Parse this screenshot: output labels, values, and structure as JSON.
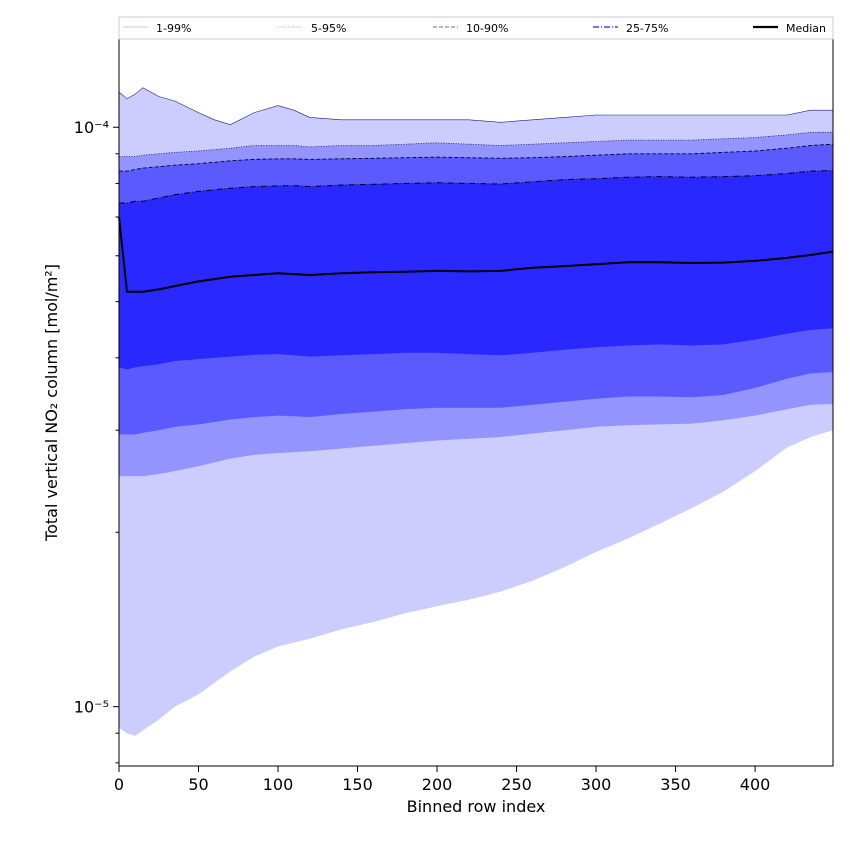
{
  "chart_data": {
    "type": "area",
    "xlabel": "Binned row index",
    "ylabel": "Total vertical NO₂ column [mol/m²]",
    "xlim": [
      0,
      449
    ],
    "ylim": [
      7.9e-06,
      0.000142
    ],
    "yscale": "log",
    "x_ticks": [
      0,
      50,
      100,
      150,
      200,
      250,
      300,
      350,
      400
    ],
    "y_major_ticks": [
      1e-05,
      0.0001
    ],
    "y_tick_labels": [
      "10⁻⁵",
      "10⁻⁴"
    ],
    "legend": {
      "position": "top",
      "entries": [
        {
          "label": "1-99%",
          "style": "solid-thin",
          "color": "#c8c8ff"
        },
        {
          "label": "5-95%",
          "style": "dotted",
          "color": "#a0a0ff"
        },
        {
          "label": "10-90%",
          "style": "dashed",
          "color": "#8080ff"
        },
        {
          "label": "25-75%",
          "style": "dashdot",
          "color": "#4040ff"
        },
        {
          "label": "Median",
          "style": "solid-thick",
          "color": "#000000"
        }
      ]
    },
    "colors": {
      "band_1_99": "#ccccff",
      "band_5_95": "#9494ff",
      "band_10_90": "#5a5aff",
      "band_25_75": "#2828ff",
      "median": "#000000"
    },
    "x": [
      0,
      5,
      10,
      15,
      25,
      35,
      50,
      60,
      70,
      85,
      100,
      110,
      120,
      140,
      160,
      180,
      200,
      220,
      240,
      260,
      280,
      300,
      320,
      340,
      360,
      380,
      400,
      420,
      435,
      449
    ],
    "series": [
      {
        "name": "1-99%",
        "upper": [
          0.000115,
          0.000112,
          0.000114,
          0.000117,
          0.000113,
          0.000111,
          0.000106,
          0.000103,
          0.000101,
          0.000106,
          0.000109,
          0.000107,
          0.000104,
          0.000103,
          0.000103,
          0.000103,
          0.000103,
          0.000103,
          0.000102,
          0.000103,
          0.000104,
          0.000105,
          0.000105,
          0.000105,
          0.000105,
          0.000105,
          0.000105,
          0.000105,
          0.000107,
          0.000107
        ],
        "lower": [
          9.2e-06,
          9e-06,
          8.9e-06,
          9.1e-06,
          9.5e-06,
          1e-05,
          1.05e-05,
          1.1e-05,
          1.15e-05,
          1.22e-05,
          1.27e-05,
          1.29e-05,
          1.31e-05,
          1.36e-05,
          1.4e-05,
          1.45e-05,
          1.49e-05,
          1.53e-05,
          1.58e-05,
          1.65e-05,
          1.74e-05,
          1.85e-05,
          1.95e-05,
          2.07e-05,
          2.2e-05,
          2.35e-05,
          2.55e-05,
          2.8e-05,
          2.92e-05,
          3e-05
        ]
      },
      {
        "name": "5-95%",
        "upper": [
          8.9e-05,
          8.9e-05,
          8.9e-05,
          8.95e-05,
          9e-05,
          9.05e-05,
          9.1e-05,
          9.15e-05,
          9.2e-05,
          9.3e-05,
          9.3e-05,
          9.3e-05,
          9.25e-05,
          9.3e-05,
          9.3e-05,
          9.35e-05,
          9.4e-05,
          9.35e-05,
          9.3e-05,
          9.35e-05,
          9.4e-05,
          9.45e-05,
          9.5e-05,
          9.5e-05,
          9.5e-05,
          9.55e-05,
          9.6e-05,
          9.7e-05,
          9.8e-05,
          9.8e-05
        ],
        "lower": [
          2.5e-05,
          2.5e-05,
          2.5e-05,
          2.5e-05,
          2.52e-05,
          2.55e-05,
          2.6e-05,
          2.64e-05,
          2.68e-05,
          2.72e-05,
          2.74e-05,
          2.75e-05,
          2.76e-05,
          2.79e-05,
          2.82e-05,
          2.85e-05,
          2.88e-05,
          2.9e-05,
          2.92e-05,
          2.96e-05,
          3e-05,
          3.04e-05,
          3.06e-05,
          3.07e-05,
          3.08e-05,
          3.12e-05,
          3.18e-05,
          3.26e-05,
          3.32e-05,
          3.33e-05
        ]
      },
      {
        "name": "10-90%",
        "upper": [
          8.4e-05,
          8.4e-05,
          8.45e-05,
          8.5e-05,
          8.55e-05,
          8.6e-05,
          8.65e-05,
          8.7e-05,
          8.75e-05,
          8.8e-05,
          8.82e-05,
          8.82e-05,
          8.8e-05,
          8.82e-05,
          8.84e-05,
          8.86e-05,
          8.88e-05,
          8.86e-05,
          8.84e-05,
          8.86e-05,
          8.9e-05,
          8.95e-05,
          9e-05,
          9e-05,
          9e-05,
          9.05e-05,
          9.1e-05,
          9.2e-05,
          9.3e-05,
          9.35e-05
        ],
        "lower": [
          2.95e-05,
          2.95e-05,
          2.95e-05,
          2.97e-05,
          3e-05,
          3.04e-05,
          3.07e-05,
          3.1e-05,
          3.13e-05,
          3.16e-05,
          3.18e-05,
          3.17e-05,
          3.16e-05,
          3.2e-05,
          3.23e-05,
          3.26e-05,
          3.28e-05,
          3.28e-05,
          3.28e-05,
          3.32e-05,
          3.36e-05,
          3.4e-05,
          3.43e-05,
          3.43e-05,
          3.42e-05,
          3.45e-05,
          3.55e-05,
          3.68e-05,
          3.76e-05,
          3.78e-05
        ]
      },
      {
        "name": "25-75%",
        "upper": [
          7.4e-05,
          7.4e-05,
          7.45e-05,
          7.45e-05,
          7.55e-05,
          7.65e-05,
          7.75e-05,
          7.8e-05,
          7.85e-05,
          7.9e-05,
          7.92e-05,
          7.93e-05,
          7.9e-05,
          7.95e-05,
          7.97e-05,
          8e-05,
          8.02e-05,
          8e-05,
          7.98e-05,
          8.05e-05,
          8.12e-05,
          8.15e-05,
          8.2e-05,
          8.22e-05,
          8.2e-05,
          8.22e-05,
          8.25e-05,
          8.32e-05,
          8.4e-05,
          8.42e-05
        ],
        "lower": [
          3.85e-05,
          3.82e-05,
          3.85e-05,
          3.87e-05,
          3.9e-05,
          3.95e-05,
          3.98e-05,
          4e-05,
          4.02e-05,
          4.05e-05,
          4.06e-05,
          4.04e-05,
          4.02e-05,
          4.04e-05,
          4.06e-05,
          4.08e-05,
          4.08e-05,
          4.06e-05,
          4.04e-05,
          4.08e-05,
          4.13e-05,
          4.17e-05,
          4.2e-05,
          4.22e-05,
          4.2e-05,
          4.22e-05,
          4.3e-05,
          4.4e-05,
          4.47e-05,
          4.5e-05
        ]
      }
    ],
    "median": {
      "name": "Median",
      "y": [
        7e-05,
        5.2e-05,
        5.2e-05,
        5.2e-05,
        5.25e-05,
        5.32e-05,
        5.42e-05,
        5.47e-05,
        5.52e-05,
        5.56e-05,
        5.6e-05,
        5.58e-05,
        5.56e-05,
        5.6e-05,
        5.62e-05,
        5.63e-05,
        5.65e-05,
        5.64e-05,
        5.65e-05,
        5.72e-05,
        5.76e-05,
        5.8e-05,
        5.85e-05,
        5.85e-05,
        5.83e-05,
        5.84e-05,
        5.88e-05,
        5.95e-05,
        6.02e-05,
        6.1e-05
      ]
    }
  }
}
